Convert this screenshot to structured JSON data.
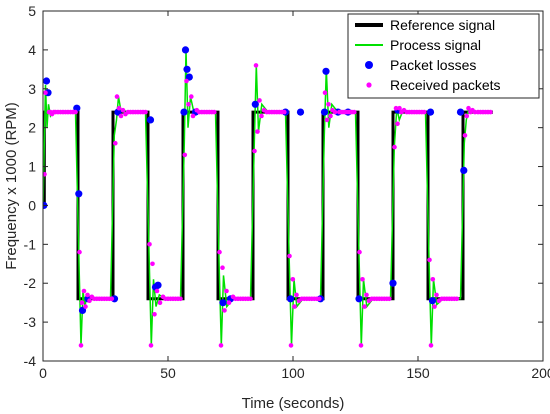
{
  "chart_data": {
    "type": "line",
    "xlabel": "Time (seconds)",
    "ylabel": "Frequency x 1000 (RPM)",
    "xlim": [
      0,
      200
    ],
    "ylim": [
      -4,
      5
    ],
    "xticks": [
      "0",
      "50",
      "100",
      "150",
      "200"
    ],
    "yticks": [
      "-4",
      "-3",
      "-2",
      "-1",
      "0",
      "1",
      "2",
      "3",
      "4",
      "5"
    ],
    "grid": false,
    "legend_position": "top-right",
    "legend": [
      "Reference signal",
      "Process signal",
      "Packet losses",
      "Received packets"
    ],
    "colors": {
      "reference": "#000000",
      "process": "#00e000",
      "losses": "#0000ff",
      "received": "#ff00ff"
    },
    "series": [
      {
        "name": "Reference signal",
        "x": [
          0,
          0.5,
          0.5,
          14,
          14,
          28,
          28,
          42,
          42,
          56,
          56,
          70,
          70,
          84,
          84,
          98,
          98,
          112,
          112,
          126,
          126,
          140,
          140,
          154,
          154,
          168,
          168,
          180
        ],
        "y": [
          0,
          0,
          2.4,
          2.4,
          -2.4,
          -2.4,
          2.4,
          2.4,
          -2.4,
          -2.4,
          2.4,
          2.4,
          -2.4,
          -2.4,
          2.4,
          2.4,
          -2.4,
          -2.4,
          2.4,
          2.4,
          -2.4,
          -2.4,
          2.4,
          2.4,
          -2.4,
          -2.4,
          2.4,
          2.4
        ]
      },
      {
        "name": "Process signal",
        "x": [
          0,
          1,
          1.6,
          2.2,
          3,
          4,
          5,
          7,
          9,
          11,
          13,
          14.5,
          15.2,
          16,
          16.8,
          17.5,
          19,
          21,
          24,
          27,
          28.5,
          29.4,
          30.2,
          31,
          32,
          34,
          37,
          41,
          42.5,
          43.3,
          44.2,
          45.2,
          46.5,
          49,
          55,
          56.5,
          57.2,
          58,
          59,
          60.5,
          63,
          69,
          70.5,
          71.3,
          72.2,
          73.5,
          76,
          83,
          84.5,
          85.3,
          86.2,
          87.5,
          90,
          97,
          98.5,
          99.4,
          100.4,
          101.5,
          104,
          111,
          112.5,
          113.3,
          114.3,
          115.5,
          118,
          125,
          126.5,
          127.3,
          128.2,
          129.5,
          132,
          139,
          140.5,
          141.5,
          142.5,
          144,
          147,
          153,
          154.5,
          155.3,
          156.2,
          157.5,
          160,
          167,
          168.5,
          169.3,
          170.2,
          171.5,
          174,
          180
        ],
        "y": [
          0,
          3.1,
          2.0,
          2.6,
          2.3,
          2.4,
          2.4,
          2.4,
          2.4,
          2.4,
          2.4,
          -1.8,
          -3.6,
          -2.2,
          -2.6,
          -2.3,
          -2.4,
          -2.4,
          -2.4,
          -2.4,
          1.8,
          2.2,
          2.8,
          2.5,
          2.4,
          2.4,
          2.4,
          2.4,
          -1.5,
          -3.6,
          -1.9,
          -2.6,
          -2.3,
          -2.4,
          -2.4,
          1.6,
          4.0,
          2.0,
          2.8,
          2.35,
          2.4,
          2.4,
          -1.7,
          -3.6,
          -1.8,
          -2.6,
          -2.4,
          -2.4,
          1.6,
          3.6,
          1.9,
          2.6,
          2.4,
          2.4,
          -1.5,
          -3.6,
          -1.9,
          -2.6,
          -2.4,
          -2.4,
          1.8,
          3.5,
          2.0,
          2.6,
          2.4,
          2.4,
          -1.6,
          -3.6,
          -1.9,
          -2.6,
          -2.4,
          -2.4,
          1.5,
          2.5,
          2.2,
          2.45,
          2.4,
          2.4,
          -1.7,
          -3.6,
          -1.9,
          -2.55,
          -2.4,
          -2.4,
          1.6,
          2.2,
          2.45,
          2.4,
          2.4,
          2.4
        ]
      },
      {
        "name": "Packet losses",
        "x": [
          0.3,
          1.4,
          2.0,
          13.5,
          14.3,
          15.8,
          18,
          28.6,
          30,
          43,
          45,
          46,
          56.4,
          57,
          57.6,
          58.5,
          61,
          72,
          75,
          84.9,
          97,
          99,
          103,
          111,
          112.6,
          113.2,
          118,
          122,
          126.4,
          140,
          142,
          155,
          155.8,
          167,
          168.3
        ],
        "y": [
          0,
          3.2,
          2.9,
          2.5,
          0.3,
          -2.7,
          -2.4,
          -2.4,
          2.4,
          2.2,
          -2.1,
          -2.05,
          2.4,
          4.0,
          3.5,
          3.3,
          2.4,
          -2.5,
          -2.4,
          2.6,
          2.4,
          -2.4,
          2.4,
          -2.4,
          2.4,
          3.45,
          2.4,
          2.4,
          -2.4,
          -2.0,
          2.45,
          2.4,
          -2.45,
          2.4,
          0.9
        ]
      },
      {
        "name": "Received packets",
        "x": [
          0.6,
          1.0,
          2.4,
          3.0,
          3.6,
          4.3,
          5,
          6,
          7,
          8,
          9,
          10,
          11,
          12,
          13,
          14.6,
          15.2,
          15.6,
          16.4,
          17,
          17.8,
          18.6,
          19.5,
          20.5,
          21.5,
          22.5,
          23.5,
          24.5,
          25.5,
          26.5,
          27.5,
          28.9,
          29.6,
          30.4,
          31.2,
          32,
          33,
          34,
          35,
          36,
          37,
          38,
          39,
          40,
          41,
          42.6,
          43.2,
          43.8,
          44.6,
          45.6,
          46.8,
          48,
          49,
          50,
          51,
          52,
          53,
          54,
          55,
          56.7,
          57.4,
          58.2,
          59.3,
          60,
          61.5,
          62.5,
          63.5,
          64.5,
          65.5,
          66.5,
          67.5,
          68.5,
          70.6,
          71.2,
          71.8,
          72.6,
          73.4,
          74.4,
          76,
          77,
          78,
          79,
          80,
          81,
          82,
          83,
          84.6,
          85.2,
          85.8,
          86.6,
          87.4,
          88.4,
          89.5,
          90.5,
          91.5,
          92.5,
          93.5,
          94.5,
          95.5,
          96.5,
          98.6,
          99.2,
          99.9,
          100.6,
          101.4,
          102.4,
          103.5,
          104.5,
          105.5,
          106.5,
          107.5,
          108.5,
          109.5,
          110.5,
          112.8,
          113.6,
          114.2,
          115,
          115.8,
          116.8,
          118.5,
          119.5,
          120.5,
          121.5,
          122.5,
          123.5,
          124.5,
          126.6,
          127.2,
          127.8,
          128.6,
          129.4,
          130.4,
          131.5,
          132.5,
          133.5,
          134.5,
          135.5,
          136.5,
          137.5,
          138.5,
          140.6,
          141.2,
          141.8,
          142.6,
          143.4,
          144.4,
          145.5,
          146.5,
          147.5,
          148.5,
          149.5,
          150.5,
          151.5,
          152.5,
          154.6,
          155.2,
          155.9,
          156.6,
          157.4,
          158.4,
          159.5,
          160.5,
          161.5,
          162.5,
          163.5,
          164.5,
          165.5,
          168.8,
          169.5,
          170.2,
          171,
          171.8,
          172.8,
          174,
          175,
          176,
          177,
          178,
          179
        ],
        "y": [
          0.8,
          2.9,
          2.4,
          2.4,
          2.35,
          2.4,
          2.4,
          2.4,
          2.4,
          2.4,
          2.4,
          2.4,
          2.4,
          2.4,
          2.4,
          -1.2,
          -3.6,
          -2.5,
          -2.2,
          -2.6,
          -2.3,
          -2.45,
          -2.35,
          -2.4,
          -2.4,
          -2.4,
          -2.4,
          -2.4,
          -2.4,
          -2.4,
          -2.4,
          1.6,
          2.8,
          2.5,
          2.3,
          2.45,
          2.35,
          2.4,
          2.4,
          2.4,
          2.4,
          2.4,
          2.4,
          2.4,
          2.4,
          -1.0,
          -3.6,
          -1.5,
          -2.8,
          -2.2,
          -2.5,
          -2.35,
          -2.4,
          -2.4,
          -2.4,
          -2.4,
          -2.4,
          -2.4,
          -2.4,
          1.3,
          3.2,
          2.6,
          2.8,
          2.3,
          2.45,
          2.4,
          2.4,
          2.4,
          2.4,
          2.4,
          2.4,
          2.4,
          -1.2,
          -3.6,
          -1.6,
          -2.7,
          -2.2,
          -2.5,
          -2.35,
          -2.4,
          -2.4,
          -2.4,
          -2.4,
          -2.4,
          -2.4,
          -2.4,
          1.4,
          3.6,
          1.9,
          2.7,
          2.3,
          2.45,
          2.4,
          2.4,
          2.4,
          2.4,
          2.4,
          2.4,
          2.4,
          2.4,
          -1.3,
          -3.6,
          -1.9,
          -2.6,
          -2.3,
          -2.45,
          -2.4,
          -2.4,
          -2.4,
          -2.4,
          -2.4,
          -2.4,
          -2.4,
          -2.4,
          2.9,
          2.2,
          2.6,
          2.3,
          2.45,
          2.4,
          2.4,
          2.4,
          2.4,
          2.4,
          2.4,
          2.4,
          2.4,
          -1.2,
          -3.6,
          -1.9,
          -2.6,
          -2.3,
          -2.45,
          -2.4,
          -2.4,
          -2.4,
          -2.4,
          -2.4,
          -2.4,
          -2.4,
          -2.4,
          1.5,
          2.5,
          2.1,
          2.5,
          2.4,
          2.45,
          2.4,
          2.4,
          2.4,
          2.4,
          2.4,
          2.4,
          2.4,
          2.4,
          -1.4,
          -3.6,
          -1.9,
          -2.6,
          -2.3,
          -2.45,
          -2.4,
          -2.4,
          -2.4,
          -2.4,
          -2.4,
          -2.4,
          -2.4,
          1.8,
          2.3,
          2.5,
          2.4,
          2.45,
          2.4,
          2.4,
          2.4,
          2.4,
          2.4,
          2.4,
          2.4
        ]
      }
    ]
  }
}
